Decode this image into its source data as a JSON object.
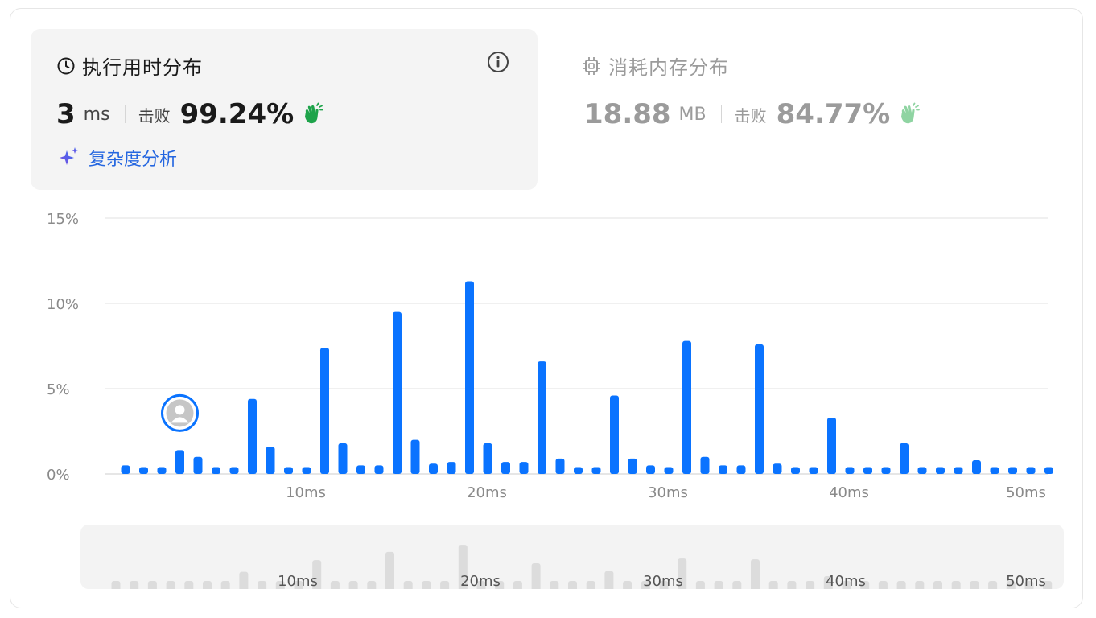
{
  "runtime": {
    "title": "执行用时分布",
    "value": "3",
    "unit": "ms",
    "beat_label": "击败",
    "beat_percent": "99.24%",
    "complexity_link": "复杂度分析",
    "icon": "clock-icon",
    "info_icon": "info-icon"
  },
  "memory": {
    "title": "消耗内存分布",
    "value": "18.88",
    "unit": "MB",
    "beat_label": "击败",
    "beat_percent": "84.77%",
    "icon": "chip-icon"
  },
  "colors": {
    "bar": "#0a73ff",
    "muted_bar": "#dcdcdc",
    "beat_green": "#1ea34a",
    "memory_green": "#8fd4a2",
    "link": "#2466e0"
  },
  "chart_data": {
    "type": "bar",
    "x_unit": "ms",
    "x": [
      1,
      2,
      3,
      4,
      5,
      6,
      7,
      8,
      9,
      10,
      11,
      12,
      13,
      14,
      15,
      16,
      17,
      18,
      19,
      20,
      21,
      22,
      23,
      24,
      25,
      26,
      27,
      28,
      29,
      30,
      31,
      32,
      33,
      34,
      35,
      36,
      37,
      38,
      39,
      40,
      41,
      42,
      43,
      44,
      45,
      46,
      47,
      48,
      49,
      50,
      51,
      52
    ],
    "values": [
      0.5,
      0.4,
      0.4,
      1.4,
      1.0,
      0.4,
      0.4,
      4.4,
      1.6,
      0.4,
      0.4,
      7.4,
      1.8,
      0.5,
      0.5,
      9.5,
      2.0,
      0.6,
      0.7,
      11.3,
      1.8,
      0.7,
      0.7,
      6.6,
      0.9,
      0.4,
      0.4,
      4.6,
      0.9,
      0.5,
      0.4,
      7.8,
      1.0,
      0.5,
      0.5,
      7.6,
      0.6,
      0.4,
      0.4,
      3.3,
      0.4,
      0.4,
      0.4,
      1.8,
      0.4,
      0.4,
      0.4,
      0.8,
      0.4,
      0.4,
      0.4,
      0.4
    ],
    "y_ticks": [
      "15%",
      "10%",
      "5%",
      "0%"
    ],
    "x_ticks": [
      "10ms",
      "20ms",
      "30ms",
      "40ms",
      "50ms"
    ],
    "ylim": [
      0,
      15
    ],
    "grid": true,
    "user_marker_x": 4,
    "overview_x_ticks": [
      "10ms",
      "20ms",
      "30ms",
      "40ms",
      "50ms"
    ]
  }
}
